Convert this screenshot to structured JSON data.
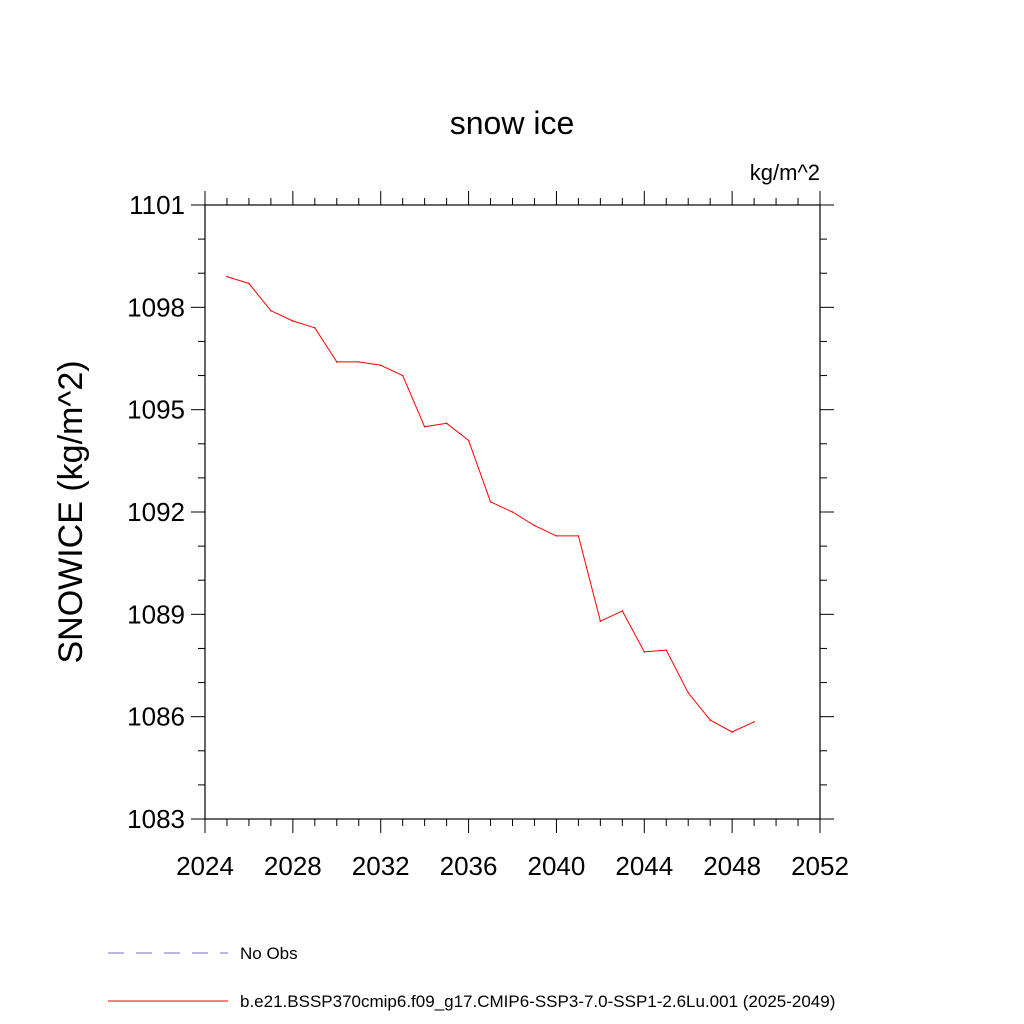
{
  "chart_data": {
    "type": "line",
    "title": "snow ice",
    "units": "kg/m^2",
    "ylabel": "SNOWICE  (kg/m^2)",
    "xlabel": "",
    "xlim": [
      2024,
      2052
    ],
    "ylim": [
      1083,
      1101
    ],
    "x_ticks": [
      2024,
      2028,
      2032,
      2036,
      2040,
      2044,
      2048,
      2052
    ],
    "y_ticks": [
      1083,
      1086,
      1089,
      1092,
      1095,
      1098,
      1101
    ],
    "grid": false,
    "legend_position": "bottom",
    "series": [
      {
        "name": "b.e21.BSSP370cmip6.f09_g17.CMIP6-SSP3-7.0-SSP1-2.6Lu.001 (2025-2049)",
        "color": "#ff0000",
        "style": "solid",
        "x": [
          2025,
          2026,
          2027,
          2028,
          2029,
          2030,
          2031,
          2032,
          2033,
          2034,
          2035,
          2036,
          2037,
          2038,
          2039,
          2040,
          2041,
          2042,
          2043,
          2044,
          2045,
          2046,
          2047,
          2048,
          2049
        ],
        "values": [
          1098.9,
          1098.7,
          1097.9,
          1097.6,
          1097.4,
          1096.4,
          1096.4,
          1096.3,
          1096.0,
          1094.5,
          1094.6,
          1094.1,
          1092.3,
          1092.0,
          1091.6,
          1091.3,
          1091.3,
          1088.8,
          1089.1,
          1087.9,
          1087.95,
          1086.7,
          1085.9,
          1085.55,
          1085.85
        ]
      }
    ],
    "legend": [
      {
        "label": "No Obs",
        "color": "#7b68c8",
        "style": "dashed"
      },
      {
        "label": "b.e21.BSSP370cmip6.f09_g17.CMIP6-SSP3-7.0-SSP1-2.6Lu.001 (2025-2049)",
        "color": "#ff0000",
        "style": "solid"
      }
    ]
  }
}
